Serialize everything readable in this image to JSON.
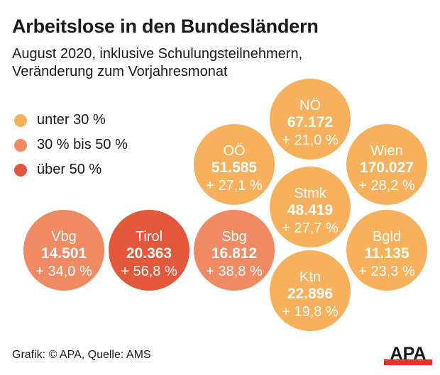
{
  "title": "Arbeitslose in den Bundesländern",
  "subtitle": [
    "August 2020, inklusive Schulungsteilnehmern,",
    "Veränderung zum Vorjahresmonat"
  ],
  "legend": [
    {
      "label": "unter 30 %",
      "color": "#f7b05b"
    },
    {
      "label": "30 % bis 50 %",
      "color": "#ef8a64"
    },
    {
      "label": "über 50 %",
      "color": "#e3573a"
    }
  ],
  "chart_data": {
    "type": "bubble",
    "title": "Arbeitslose in den Bundesländern",
    "subtitle": "August 2020, inklusive Schulungsteilnehmern, Veränderung zum Vorjahresmonat",
    "categories": [
      "unter 30 %",
      "30 % bis 50 %",
      "über 50 %"
    ],
    "items": [
      {
        "name": "NÖ",
        "value": "67.172",
        "change": "+ 21,0 %",
        "unemployed": 67172,
        "change_pct": 21.0,
        "category": 0
      },
      {
        "name": "OÖ",
        "value": "51.585",
        "change": "+ 27,1 %",
        "unemployed": 51585,
        "change_pct": 27.1,
        "category": 0
      },
      {
        "name": "Wien",
        "value": "170.027",
        "change": "+ 28,2 %",
        "unemployed": 170027,
        "change_pct": 28.2,
        "category": 0
      },
      {
        "name": "Stmk",
        "value": "48.419",
        "change": "+ 27,7 %",
        "unemployed": 48419,
        "change_pct": 27.7,
        "category": 0
      },
      {
        "name": "Vbg",
        "value": "14.501",
        "change": "+ 34,0 %",
        "unemployed": 14501,
        "change_pct": 34.0,
        "category": 1
      },
      {
        "name": "Tirol",
        "value": "20.363",
        "change": "+ 56,8 %",
        "unemployed": 20363,
        "change_pct": 56.8,
        "category": 2
      },
      {
        "name": "Sbg",
        "value": "16.812",
        "change": "+ 38,8 %",
        "unemployed": 16812,
        "change_pct": 38.8,
        "category": 1
      },
      {
        "name": "Bgld",
        "value": "11.135",
        "change": "+ 23,3 %",
        "unemployed": 11135,
        "change_pct": 23.3,
        "category": 0
      },
      {
        "name": "Ktn",
        "value": "22.896",
        "change": "+ 19,8 %",
        "unemployed": 22896,
        "change_pct": 19.8,
        "category": 0
      }
    ]
  },
  "footer": "Grafik: © APA, Quelle: AMS",
  "logo": {
    "text": "APA",
    "bar_color": "#e5332a"
  }
}
